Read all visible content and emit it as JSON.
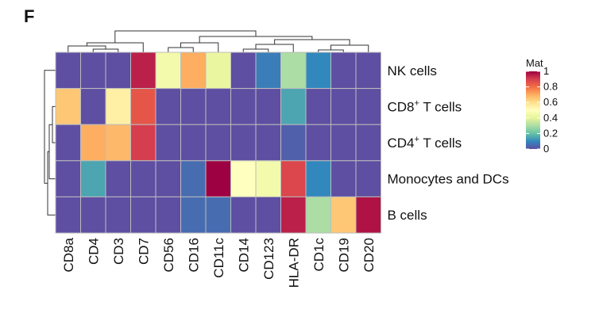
{
  "panel_letter": "F",
  "chart_data": {
    "type": "heatmap",
    "columns": [
      "CD8a",
      "CD4",
      "CD3",
      "CD7",
      "CD56",
      "CD16",
      "CD11c",
      "CD14",
      "CD123",
      "HLA-DR",
      "CD1c",
      "CD19",
      "CD20"
    ],
    "rows": [
      {
        "name": "NK cells",
        "prefix": "NK cells",
        "sup": "",
        "suffix": ""
      },
      {
        "name": "CD8+ T cells",
        "prefix": "CD8",
        "sup": "+",
        "suffix": " T cells"
      },
      {
        "name": "CD4+ T cells",
        "prefix": "CD4",
        "sup": "+",
        "suffix": " T cells"
      },
      {
        "name": "Monocytes and DCs",
        "prefix": "Monocytes and DCs",
        "sup": "",
        "suffix": ""
      },
      {
        "name": "B cells",
        "prefix": "B cells",
        "sup": "",
        "suffix": ""
      }
    ],
    "values": [
      [
        0.0,
        0.0,
        0.0,
        0.95,
        0.45,
        0.7,
        0.42,
        0.0,
        0.08,
        0.3,
        0.1,
        0.0,
        0.0
      ],
      [
        0.65,
        0.0,
        0.55,
        0.85,
        0.0,
        0.0,
        0.0,
        0.0,
        0.0,
        0.15,
        0.0,
        0.0,
        0.0
      ],
      [
        0.0,
        0.7,
        0.68,
        0.9,
        0.0,
        0.0,
        0.0,
        0.0,
        0.0,
        0.03,
        0.0,
        0.0,
        0.0
      ],
      [
        0.0,
        0.15,
        0.0,
        0.0,
        0.0,
        0.05,
        1.0,
        0.5,
        0.45,
        0.88,
        0.1,
        0.0,
        0.0
      ],
      [
        0.0,
        0.0,
        0.0,
        0.0,
        0.0,
        0.05,
        0.05,
        0.0,
        0.0,
        0.95,
        0.3,
        0.65,
        0.97
      ]
    ],
    "legend": {
      "title": "Mat",
      "ticks": [
        "1",
        "0.8",
        "0.6",
        "0.4",
        "0.2",
        "0"
      ],
      "tick_values": [
        1,
        0.8,
        0.6,
        0.4,
        0.2,
        0
      ],
      "placement": "top-right"
    },
    "color_scale": {
      "name": "Spectral",
      "stops": [
        "#5E4FA2",
        "#3288BD",
        "#66C2A5",
        "#ABDDA4",
        "#E6F598",
        "#FFFFBF",
        "#FEE08B",
        "#FDAE61",
        "#F46D43",
        "#D53E4F",
        "#9E0142"
      ]
    },
    "range": [
      0,
      1
    ],
    "dendrograms": {
      "rows": true,
      "columns": true
    }
  }
}
